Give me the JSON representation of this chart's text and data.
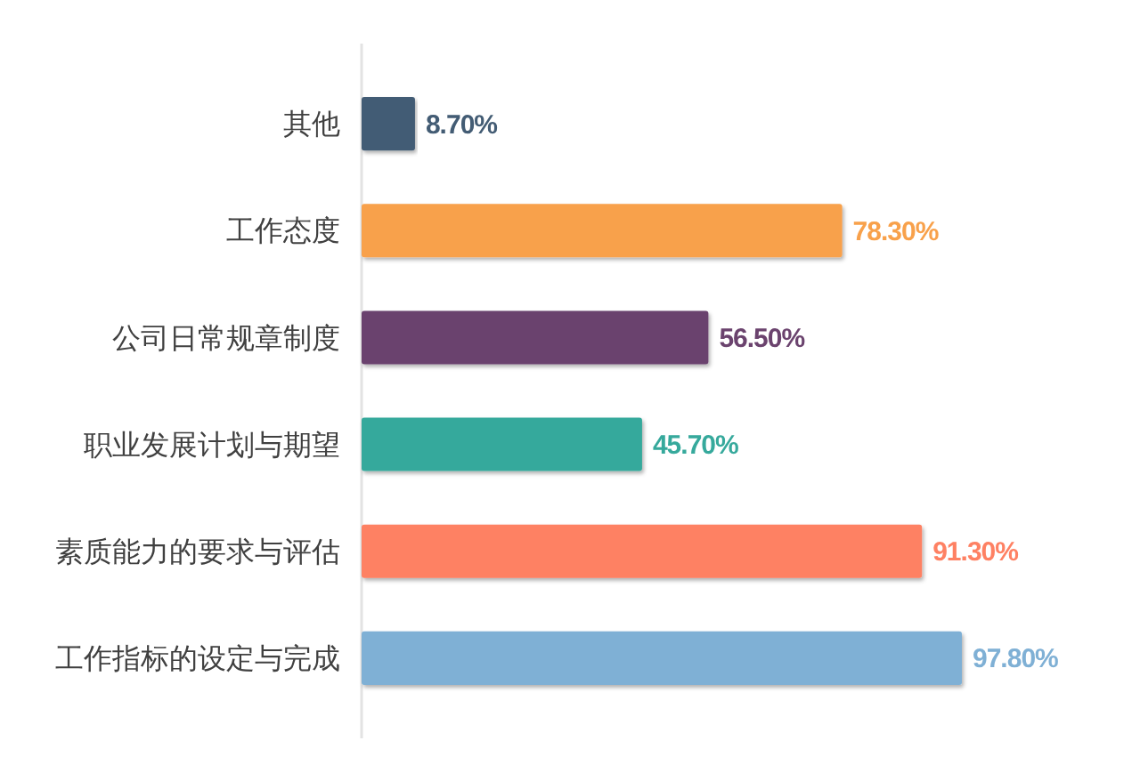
{
  "chart_data": {
    "type": "bar",
    "orientation": "horizontal",
    "categories": [
      "其他",
      "工作态度",
      "公司日常规章制度",
      "职业发展计划与期望",
      "素质能力的要求与评估",
      "工作指标的设定与完成"
    ],
    "values": [
      8.7,
      78.3,
      56.5,
      45.7,
      91.3,
      97.8
    ],
    "colors": [
      "#435c74",
      "#f8a14b",
      "#6b436e",
      "#36a99c",
      "#fe8163",
      "#7fb0d5"
    ],
    "value_labels": [
      "8.70%",
      "78.30%",
      "56.50%",
      "45.70%",
      "91.30%",
      "97.80%"
    ]
  }
}
